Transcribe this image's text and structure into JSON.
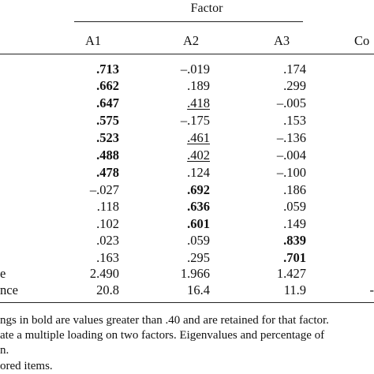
{
  "table": {
    "factor_label": "Factor",
    "columns": [
      "A1",
      "A2",
      "A3",
      "Co"
    ],
    "rows": [
      {
        "label": "",
        "cells": [
          {
            "v": ".713",
            "b": true
          },
          {
            "v": "–.019"
          },
          {
            "v": ".174"
          }
        ]
      },
      {
        "label": "",
        "cells": [
          {
            "v": ".662",
            "b": true
          },
          {
            "v": ".189"
          },
          {
            "v": ".299"
          }
        ]
      },
      {
        "label": "",
        "cells": [
          {
            "v": ".647",
            "b": true
          },
          {
            "v": ".418",
            "u": true
          },
          {
            "v": "–.005"
          }
        ]
      },
      {
        "label": "",
        "cells": [
          {
            "v": ".575",
            "b": true
          },
          {
            "v": "–.175"
          },
          {
            "v": ".153"
          }
        ]
      },
      {
        "label": "",
        "cells": [
          {
            "v": ".523",
            "b": true
          },
          {
            "v": ".461",
            "u": true
          },
          {
            "v": "–.136"
          }
        ]
      },
      {
        "label": "",
        "cells": [
          {
            "v": ".488",
            "b": true
          },
          {
            "v": ".402",
            "u": true
          },
          {
            "v": "–.004"
          }
        ]
      },
      {
        "label": "",
        "cells": [
          {
            "v": ".478",
            "b": true
          },
          {
            "v": ".124"
          },
          {
            "v": "–.100"
          }
        ]
      },
      {
        "label": "",
        "cells": [
          {
            "v": "–.027"
          },
          {
            "v": ".692",
            "b": true
          },
          {
            "v": ".186"
          }
        ]
      },
      {
        "label": "",
        "cells": [
          {
            "v": ".118"
          },
          {
            "v": ".636",
            "b": true
          },
          {
            "v": ".059"
          }
        ]
      },
      {
        "label": "",
        "cells": [
          {
            "v": ".102"
          },
          {
            "v": ".601",
            "b": true
          },
          {
            "v": ".149"
          }
        ]
      },
      {
        "label": "",
        "cells": [
          {
            "v": ".023"
          },
          {
            "v": ".059"
          },
          {
            "v": ".839",
            "b": true
          }
        ]
      },
      {
        "label": "",
        "cells": [
          {
            "v": ".163"
          },
          {
            "v": ".295"
          },
          {
            "v": ".701",
            "b": true
          }
        ]
      },
      {
        "label": "e",
        "cells": [
          {
            "v": "2.490"
          },
          {
            "v": "1.966"
          },
          {
            "v": "1.427"
          }
        ]
      },
      {
        "label": "nce",
        "cells": [
          {
            "v": "20.8"
          },
          {
            "v": "16.4"
          },
          {
            "v": "11.9"
          }
        ],
        "trailing": "-"
      }
    ]
  },
  "notes": [
    "ngs in bold are values greater than .40 and are retained for that factor.",
    "ate a multiple loading on two factors. Eigenvalues and percentage of",
    "n.",
    "ored items."
  ]
}
